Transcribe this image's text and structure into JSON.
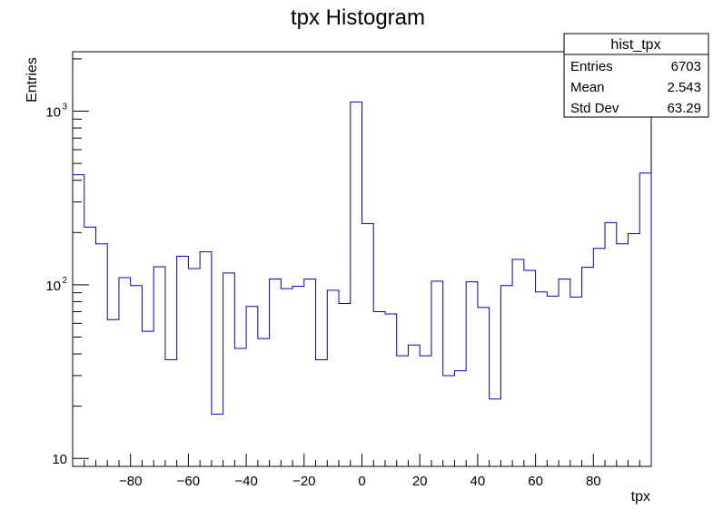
{
  "chart_data": {
    "type": "histogram",
    "title": "tpx Histogram",
    "xlabel": "tpx",
    "ylabel": "Entries",
    "xlim": [
      -100,
      100
    ],
    "ylim": [
      9,
      2200
    ],
    "yscale": "log",
    "x_ticks": [
      -80,
      -60,
      -40,
      -20,
      0,
      20,
      40,
      60,
      80
    ],
    "y_tick_labels": [
      {
        "value": 10,
        "label": "10"
      },
      {
        "value": 100,
        "label": "10",
        "exp": "2"
      },
      {
        "value": 1000,
        "label": "10",
        "exp": "3"
      }
    ],
    "bin_width": 4,
    "bin_edges_start": -100,
    "values": [
      430,
      215,
      172,
      63,
      110,
      99,
      54,
      127,
      37,
      146,
      124,
      155,
      18,
      117,
      43,
      75,
      49,
      108,
      95,
      98,
      108,
      37,
      93,
      78,
      1130,
      225,
      70,
      68,
      39,
      45,
      39,
      105,
      30,
      32,
      104,
      74,
      22,
      99,
      140,
      121,
      91,
      86,
      108,
      85,
      126,
      162,
      228,
      172,
      197,
      440
    ],
    "line_color": "#0000cc",
    "grid": false
  },
  "stats": {
    "name": "hist_tpx",
    "rows": [
      {
        "label": "Entries",
        "value": "6703"
      },
      {
        "label": "Mean",
        "value": "2.543"
      },
      {
        "label": "Std Dev",
        "value": "63.29"
      }
    ]
  }
}
